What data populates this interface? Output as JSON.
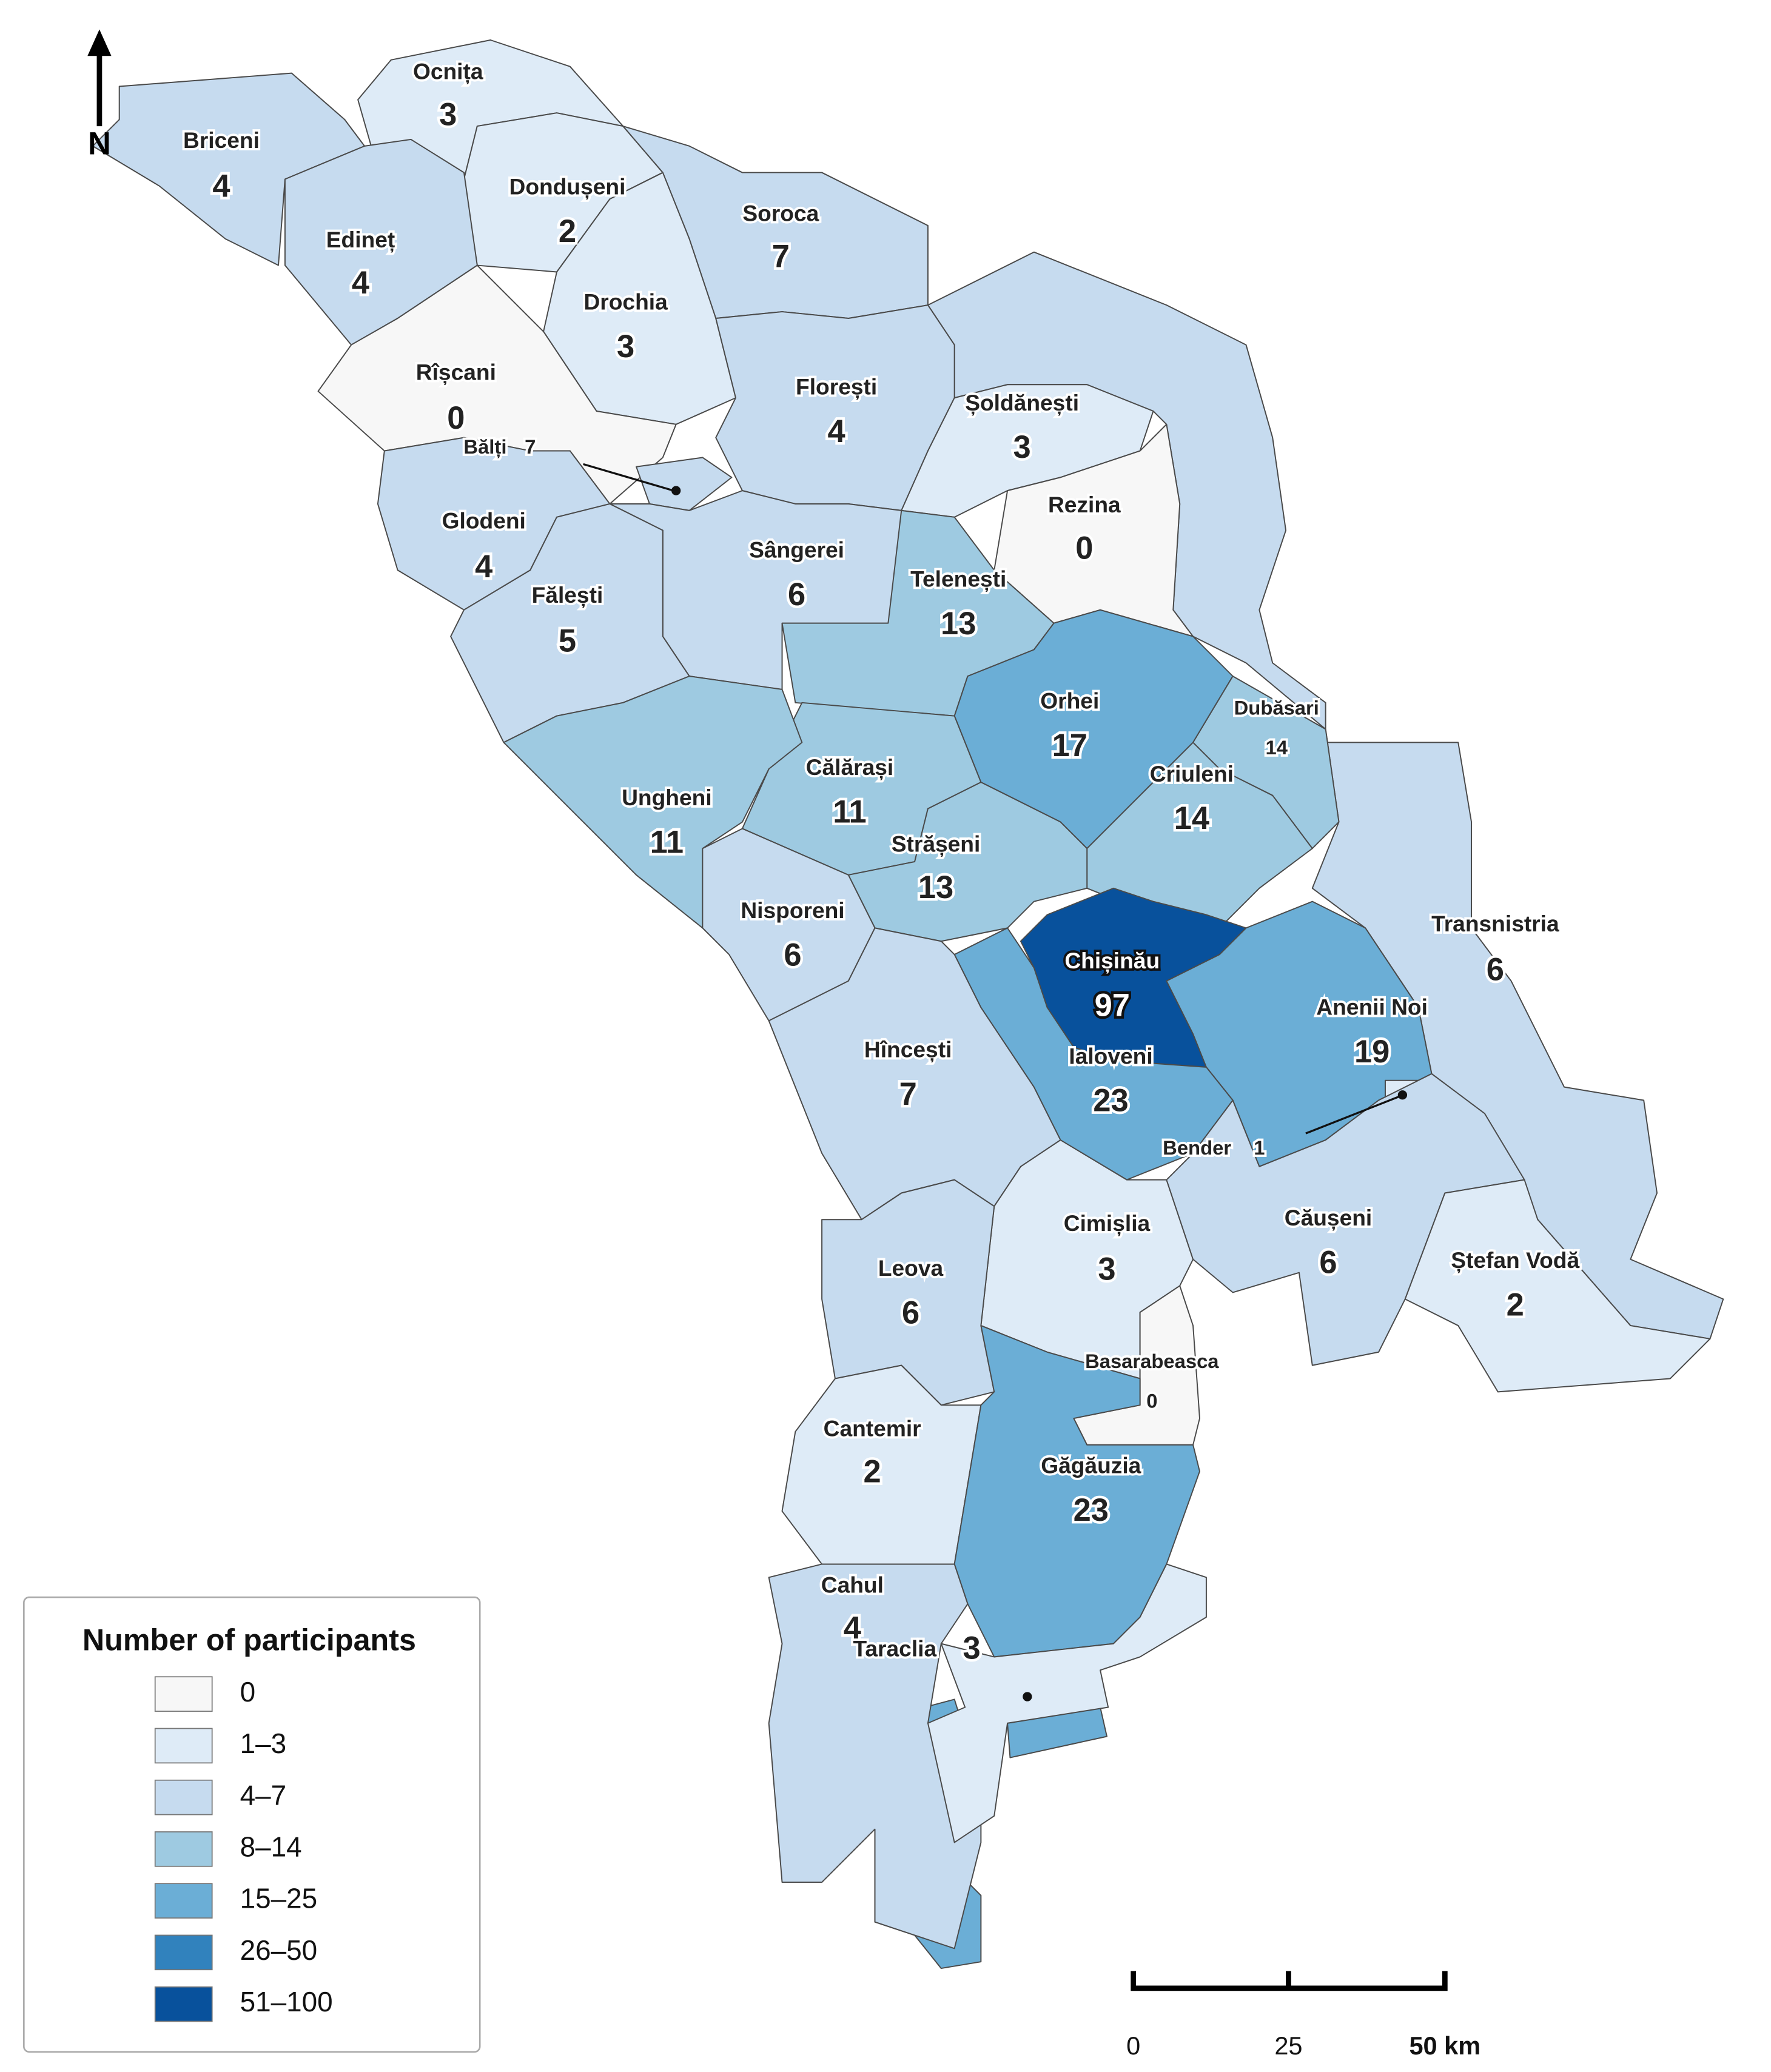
{
  "map": {
    "north": "N",
    "regions": [
      {
        "name": "Ocnița",
        "count": 3,
        "color": "#deebf7"
      },
      {
        "name": "Briceni",
        "count": 4,
        "color": "#c6dbef"
      },
      {
        "name": "Dondușeni",
        "count": 2,
        "color": "#deebf7"
      },
      {
        "name": "Edineț",
        "count": 4,
        "color": "#c6dbef"
      },
      {
        "name": "Soroca",
        "count": 7,
        "color": "#c6dbef"
      },
      {
        "name": "Drochia",
        "count": 3,
        "color": "#deebf7"
      },
      {
        "name": "Rîșcani",
        "count": 0,
        "color": "#f7f7f7"
      },
      {
        "name": "Bălți",
        "count": 7,
        "color": "#c6dbef"
      },
      {
        "name": "Florești",
        "count": 4,
        "color": "#c6dbef"
      },
      {
        "name": "Șoldănești",
        "count": 3,
        "color": "#deebf7"
      },
      {
        "name": "Rezina",
        "count": 0,
        "color": "#f7f7f7"
      },
      {
        "name": "Glodeni",
        "count": 4,
        "color": "#c6dbef"
      },
      {
        "name": "Sângerei",
        "count": 6,
        "color": "#c6dbef"
      },
      {
        "name": "Telenești",
        "count": 13,
        "color": "#9ecae1"
      },
      {
        "name": "Fălești",
        "count": 5,
        "color": "#c6dbef"
      },
      {
        "name": "Orhei",
        "count": 17,
        "color": "#6baed6"
      },
      {
        "name": "Dubăsari",
        "count": 14,
        "color": "#9ecae1"
      },
      {
        "name": "Călărași",
        "count": 11,
        "color": "#9ecae1"
      },
      {
        "name": "Criuleni",
        "count": 14,
        "color": "#9ecae1"
      },
      {
        "name": "Ungheni",
        "count": 11,
        "color": "#9ecae1"
      },
      {
        "name": "Strășeni",
        "count": 13,
        "color": "#9ecae1"
      },
      {
        "name": "Nisporeni",
        "count": 6,
        "color": "#c6dbef"
      },
      {
        "name": "Transnistria",
        "count": 6,
        "color": "#c6dbef"
      },
      {
        "name": "Chișinău",
        "count": 97,
        "color": "#08519c"
      },
      {
        "name": "Anenii Noi",
        "count": 19,
        "color": "#6baed6"
      },
      {
        "name": "Ialoveni",
        "count": 23,
        "color": "#6baed6"
      },
      {
        "name": "Hîncești",
        "count": 7,
        "color": "#c6dbef"
      },
      {
        "name": "Bender",
        "count": 1,
        "color": "#deebf7"
      },
      {
        "name": "Cimișlia",
        "count": 3,
        "color": "#deebf7"
      },
      {
        "name": "Căușeni",
        "count": 6,
        "color": "#c6dbef"
      },
      {
        "name": "Ștefan Vodă",
        "count": 2,
        "color": "#deebf7"
      },
      {
        "name": "Leova",
        "count": 6,
        "color": "#c6dbef"
      },
      {
        "name": "Basarabeasca",
        "count": 0,
        "color": "#f7f7f7"
      },
      {
        "name": "Cantemir",
        "count": 2,
        "color": "#deebf7"
      },
      {
        "name": "Găgăuzia",
        "count": 23,
        "color": "#6baed6"
      },
      {
        "name": "Cahul",
        "count": 4,
        "color": "#c6dbef"
      },
      {
        "name": "Taraclia",
        "count": 3,
        "color": "#deebf7"
      }
    ],
    "legend": {
      "title": "Number of participants",
      "classes": [
        {
          "label": "0",
          "color": "#f7f7f7"
        },
        {
          "label": "1–3",
          "color": "#deebf7"
        },
        {
          "label": "4–7",
          "color": "#c6dbef"
        },
        {
          "label": "8–14",
          "color": "#9ecae1"
        },
        {
          "label": "15–25",
          "color": "#6baed6"
        },
        {
          "label": "26–50",
          "color": "#3182bd"
        },
        {
          "label": "51–100",
          "color": "#08519c"
        }
      ]
    },
    "scale": {
      "labels": [
        "0",
        "25",
        "50 km"
      ]
    }
  }
}
